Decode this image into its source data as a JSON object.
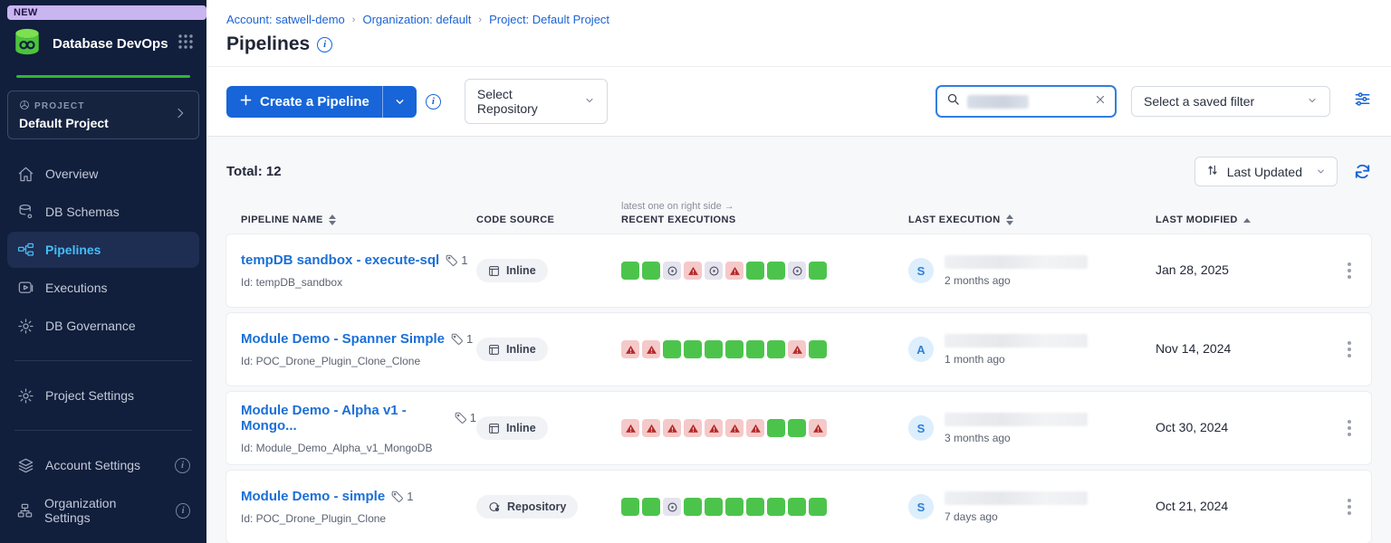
{
  "colors": {
    "sidebar_bg": "#111e3c",
    "accent_blue": "#1765d8",
    "active_nav": "#45bdf5",
    "success_green": "#4cc44c",
    "failed_red_bg": "#f5c9c9",
    "skipped_gray_bg": "#e4e3ee",
    "brand_green": "#2db92d"
  },
  "sidebar": {
    "new_badge": "NEW",
    "app_title": "Database DevOps",
    "project_label": "PROJECT",
    "project_name": "Default Project",
    "nav": [
      {
        "label": "Overview",
        "icon": "home-icon"
      },
      {
        "label": "DB Schemas",
        "icon": "database-icon"
      },
      {
        "label": "Pipelines",
        "icon": "pipeline-icon",
        "active": true
      },
      {
        "label": "Executions",
        "icon": "play-icon"
      },
      {
        "label": "DB Governance",
        "icon": "gear-icon"
      }
    ],
    "secondary": [
      {
        "label": "Project Settings",
        "icon": "gear-icon"
      }
    ],
    "footer": [
      {
        "label": "Account Settings",
        "icon": "layers-icon",
        "info": true
      },
      {
        "label": "Organization Settings",
        "icon": "org-icon",
        "info": true
      }
    ]
  },
  "header": {
    "breadcrumb": [
      "Account: satwell-demo",
      "Organization: default",
      "Project: Default Project"
    ],
    "title": "Pipelines"
  },
  "toolbar": {
    "create_label": "Create a Pipeline",
    "repo_label": "Select Repository",
    "filter_label": "Select a saved filter"
  },
  "list": {
    "total": "Total: 12",
    "sort_label": "Last Updated",
    "note": "latest one on right side →",
    "columns": {
      "name": "PIPELINE NAME",
      "source": "CODE SOURCE",
      "executions": "RECENT EXECUTIONS",
      "last_execution": "LAST EXECUTION",
      "last_modified": "LAST MODIFIED"
    },
    "rows": [
      {
        "name": "tempDB sandbox - execute-sql",
        "tag_count": "1",
        "id": "Id: tempDB_sandbox",
        "source": "Inline",
        "executions": [
          "success",
          "success",
          "skipped",
          "failed",
          "skipped",
          "failed",
          "success",
          "success",
          "skipped",
          "success"
        ],
        "avatar": "S",
        "time_ago": "2 months ago",
        "modified": "Jan 28, 2025"
      },
      {
        "name": "Module Demo - Spanner Simple",
        "tag_count": "1",
        "id": "Id: POC_Drone_Plugin_Clone_Clone",
        "source": "Inline",
        "executions": [
          "failed",
          "failed",
          "success",
          "success",
          "success",
          "success",
          "success",
          "success",
          "failed",
          "success"
        ],
        "avatar": "A",
        "time_ago": "1 month ago",
        "modified": "Nov 14, 2024"
      },
      {
        "name": "Module Demo - Alpha v1 - Mongo...",
        "tag_count": "1",
        "id": "Id: Module_Demo_Alpha_v1_MongoDB",
        "source": "Inline",
        "executions": [
          "failed",
          "failed",
          "failed",
          "failed",
          "failed",
          "failed",
          "failed",
          "success",
          "success",
          "failed"
        ],
        "avatar": "S",
        "time_ago": "3 months ago",
        "modified": "Oct 30, 2024"
      },
      {
        "name": "Module Demo - simple",
        "tag_count": "1",
        "id": "Id: POC_Drone_Plugin_Clone",
        "source": "Repository",
        "executions": [
          "success",
          "success",
          "skipped",
          "success",
          "success",
          "success",
          "success",
          "success",
          "success",
          "success"
        ],
        "avatar": "S",
        "time_ago": "7 days ago",
        "modified": "Oct 21, 2024"
      }
    ]
  }
}
